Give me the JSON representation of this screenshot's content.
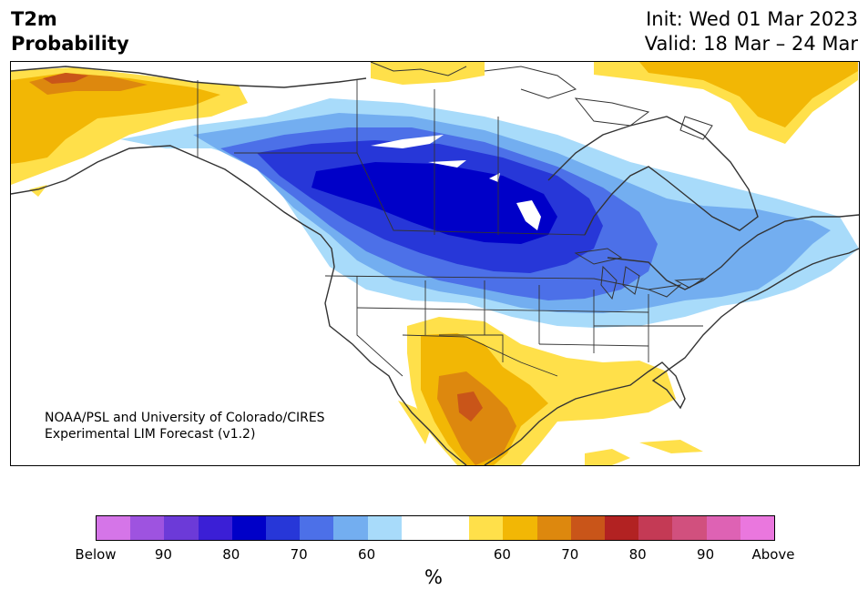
{
  "header": {
    "title_line1": "T2m",
    "title_line2": "Probability",
    "init": "Init: Wed 01 Mar 2023",
    "valid": "Valid: 18 Mar – 24 Mar"
  },
  "map": {
    "credit_line1": "NOAA/PSL and University of Colorado/CIRES",
    "credit_line2": "Experimental LIM Forecast (v1.2)"
  },
  "colorbar": {
    "colors": [
      "#d575e8",
      "#9e53e0",
      "#6c3ad8",
      "#3b1fd6",
      "#0000c8",
      "#2737d8",
      "#4c70e8",
      "#73aef0",
      "#a8dbfa",
      "#ffffff",
      "#ffffff",
      "#ffe04a",
      "#f2b705",
      "#dd880e",
      "#c95519",
      "#b22222",
      "#c43a55",
      "#d1507e",
      "#de62b4",
      "#ea77de"
    ],
    "tick_labels": [
      "Below",
      "90",
      "80",
      "70",
      "60",
      "",
      "60",
      "70",
      "80",
      "90",
      "Above"
    ],
    "unit": "%"
  },
  "colors": {
    "below_strong": "#0000c8",
    "above_strong": "#c95519",
    "neutral": "#ffffff",
    "outline": "#333333"
  }
}
